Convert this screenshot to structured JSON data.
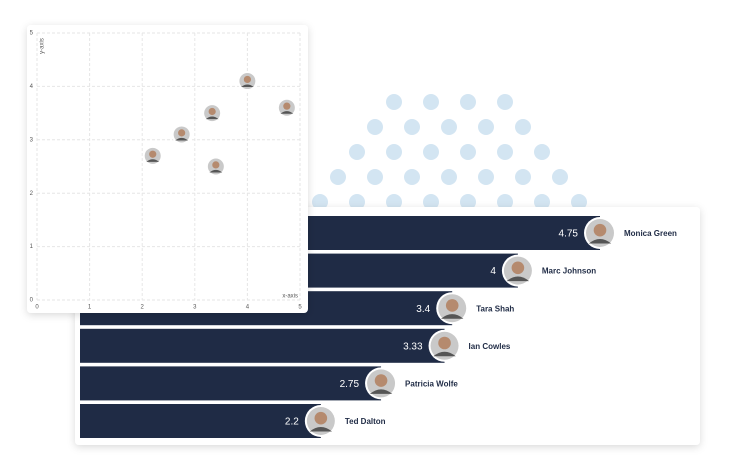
{
  "chart_data": [
    {
      "type": "scatter",
      "x_label": "x-axis",
      "y_label": "y-axis",
      "x": [
        2.2,
        2.75,
        3.33,
        3.4,
        4,
        4.75
      ],
      "y": [
        2.7,
        3.1,
        3.5,
        2.5,
        4.1,
        3.6
      ],
      "xlim": [
        0,
        5
      ],
      "ylim": [
        0,
        5
      ],
      "xticks": [
        0,
        1,
        2,
        3,
        4,
        5
      ],
      "yticks": [
        0,
        1,
        2,
        3,
        4,
        5
      ],
      "grid": true
    },
    {
      "type": "hbar",
      "categories": [
        "Monica Green",
        "Marc Johnson",
        "Tara Shah",
        "Ian Cowles",
        "Patricia Wolfe",
        "Ted Dalton"
      ],
      "values": [
        4.75,
        4,
        3.4,
        3.33,
        2.75,
        2.2
      ],
      "color": "#1f2b45"
    }
  ]
}
